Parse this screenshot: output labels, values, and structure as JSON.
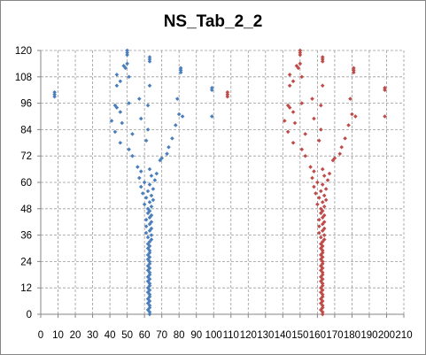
{
  "chart_data": {
    "type": "scatter",
    "title": "NS_Tab_2_2",
    "xlabel": "",
    "ylabel": "",
    "xlim": [
      0,
      210
    ],
    "ylim": [
      0,
      120
    ],
    "x_ticks": [
      "0",
      "10",
      "20",
      "30",
      "40",
      "50",
      "60",
      "70",
      "80",
      "90",
      "100",
      "110",
      "120",
      "130",
      "140",
      "150",
      "160",
      "170",
      "180",
      "190",
      "200",
      "210"
    ],
    "y_ticks": [
      "0",
      "12",
      "24",
      "36",
      "48",
      "60",
      "72",
      "84",
      "96",
      "108",
      "120"
    ],
    "grid": {
      "vertical": "dashed",
      "horizontal": "dashed"
    },
    "legend": "none",
    "series": [
      {
        "color": "#4a7ebb",
        "points": [
          [
            63,
            0
          ],
          [
            63,
            1
          ],
          [
            62,
            2
          ],
          [
            63,
            3
          ],
          [
            63,
            4
          ],
          [
            62,
            5
          ],
          [
            63,
            6
          ],
          [
            62,
            7
          ],
          [
            63,
            8
          ],
          [
            63,
            9
          ],
          [
            62,
            10
          ],
          [
            63,
            11
          ],
          [
            62,
            12
          ],
          [
            63,
            13
          ],
          [
            63,
            14
          ],
          [
            62,
            15
          ],
          [
            63,
            16
          ],
          [
            62,
            17
          ],
          [
            63,
            18
          ],
          [
            63,
            19
          ],
          [
            62,
            20
          ],
          [
            63,
            21
          ],
          [
            62,
            22
          ],
          [
            63,
            23
          ],
          [
            63,
            24
          ],
          [
            62,
            25
          ],
          [
            63,
            26
          ],
          [
            62,
            27
          ],
          [
            63,
            28
          ],
          [
            63,
            29
          ],
          [
            62,
            30
          ],
          [
            63,
            31
          ],
          [
            62,
            32
          ],
          [
            63,
            33
          ],
          [
            64,
            34
          ],
          [
            62,
            35
          ],
          [
            64,
            36
          ],
          [
            61,
            37
          ],
          [
            63,
            38
          ],
          [
            64,
            39
          ],
          [
            61,
            40
          ],
          [
            63,
            41
          ],
          [
            64,
            42
          ],
          [
            61,
            43
          ],
          [
            63,
            44
          ],
          [
            64,
            45
          ],
          [
            62,
            46
          ],
          [
            63,
            47
          ],
          [
            62,
            48
          ],
          [
            64,
            49
          ],
          [
            60,
            50
          ],
          [
            63,
            51
          ],
          [
            65,
            52
          ],
          [
            61,
            53
          ],
          [
            64,
            54
          ],
          [
            59,
            55
          ],
          [
            62,
            56
          ],
          [
            65,
            57
          ],
          [
            58,
            58
          ],
          [
            63,
            59
          ],
          [
            60,
            60
          ],
          [
            66,
            61
          ],
          [
            57,
            62
          ],
          [
            64,
            63
          ],
          [
            67,
            64
          ],
          [
            58,
            65
          ],
          [
            63,
            66
          ],
          [
            56,
            67
          ],
          [
            69,
            70
          ],
          [
            70,
            71
          ],
          [
            53,
            72
          ],
          [
            73,
            73
          ],
          [
            51,
            75
          ],
          [
            74,
            76
          ],
          [
            46,
            78
          ],
          [
            61,
            79
          ],
          [
            76,
            80
          ],
          [
            53,
            82
          ],
          [
            43,
            83
          ],
          [
            62,
            84
          ],
          [
            78,
            86
          ],
          [
            47,
            87
          ],
          [
            41,
            88
          ],
          [
            58,
            89
          ],
          [
            82,
            90
          ],
          [
            99,
            90
          ],
          [
            80,
            91
          ],
          [
            46,
            92
          ],
          [
            62,
            95
          ],
          [
            51,
            96
          ],
          [
            43,
            95
          ],
          [
            44,
            94
          ],
          [
            79,
            98
          ],
          [
            57,
            98
          ],
          [
            63,
            104
          ],
          [
            44,
            104
          ],
          [
            46,
            106
          ],
          [
            81,
            110
          ],
          [
            81,
            111
          ],
          [
            81,
            112
          ],
          [
            51,
            108
          ],
          [
            44,
            109
          ],
          [
            49,
            112
          ],
          [
            48,
            113
          ],
          [
            50,
            114
          ],
          [
            63,
            115
          ],
          [
            63,
            116
          ],
          [
            63,
            117
          ],
          [
            50,
            118
          ],
          [
            50,
            119
          ],
          [
            50,
            120
          ],
          [
            99,
            102
          ],
          [
            99,
            103
          ],
          [
            8,
            99
          ],
          [
            8,
            100
          ],
          [
            8,
            101
          ]
        ]
      },
      {
        "color": "#be4b48",
        "points": [
          [
            163,
            0
          ],
          [
            163,
            1
          ],
          [
            162,
            2
          ],
          [
            163,
            3
          ],
          [
            163,
            4
          ],
          [
            162,
            5
          ],
          [
            163,
            6
          ],
          [
            162,
            7
          ],
          [
            163,
            8
          ],
          [
            163,
            9
          ],
          [
            162,
            10
          ],
          [
            163,
            11
          ],
          [
            162,
            12
          ],
          [
            163,
            13
          ],
          [
            163,
            14
          ],
          [
            162,
            15
          ],
          [
            163,
            16
          ],
          [
            162,
            17
          ],
          [
            163,
            18
          ],
          [
            163,
            19
          ],
          [
            162,
            20
          ],
          [
            163,
            21
          ],
          [
            162,
            22
          ],
          [
            163,
            23
          ],
          [
            163,
            24
          ],
          [
            162,
            25
          ],
          [
            163,
            26
          ],
          [
            162,
            27
          ],
          [
            163,
            28
          ],
          [
            163,
            29
          ],
          [
            162,
            30
          ],
          [
            163,
            31
          ],
          [
            162,
            32
          ],
          [
            163,
            33
          ],
          [
            164,
            34
          ],
          [
            162,
            35
          ],
          [
            164,
            36
          ],
          [
            161,
            37
          ],
          [
            163,
            38
          ],
          [
            164,
            39
          ],
          [
            161,
            40
          ],
          [
            163,
            41
          ],
          [
            164,
            42
          ],
          [
            161,
            43
          ],
          [
            163,
            44
          ],
          [
            164,
            45
          ],
          [
            162,
            46
          ],
          [
            163,
            47
          ],
          [
            162,
            48
          ],
          [
            164,
            49
          ],
          [
            160,
            50
          ],
          [
            163,
            51
          ],
          [
            165,
            52
          ],
          [
            161,
            53
          ],
          [
            164,
            54
          ],
          [
            159,
            55
          ],
          [
            162,
            56
          ],
          [
            165,
            57
          ],
          [
            158,
            58
          ],
          [
            163,
            59
          ],
          [
            160,
            60
          ],
          [
            166,
            61
          ],
          [
            157,
            62
          ],
          [
            164,
            63
          ],
          [
            167,
            64
          ],
          [
            158,
            65
          ],
          [
            163,
            66
          ],
          [
            156,
            67
          ],
          [
            169,
            70
          ],
          [
            170,
            71
          ],
          [
            153,
            72
          ],
          [
            173,
            73
          ],
          [
            151,
            75
          ],
          [
            174,
            76
          ],
          [
            146,
            78
          ],
          [
            161,
            79
          ],
          [
            176,
            80
          ],
          [
            153,
            82
          ],
          [
            143,
            83
          ],
          [
            162,
            84
          ],
          [
            178,
            86
          ],
          [
            147,
            87
          ],
          [
            141,
            88
          ],
          [
            158,
            89
          ],
          [
            182,
            90
          ],
          [
            199,
            90
          ],
          [
            180,
            91
          ],
          [
            146,
            92
          ],
          [
            162,
            95
          ],
          [
            151,
            96
          ],
          [
            143,
            95
          ],
          [
            144,
            94
          ],
          [
            179,
            98
          ],
          [
            157,
            98
          ],
          [
            163,
            104
          ],
          [
            144,
            104
          ],
          [
            146,
            106
          ],
          [
            181,
            110
          ],
          [
            181,
            111
          ],
          [
            181,
            112
          ],
          [
            151,
            108
          ],
          [
            144,
            109
          ],
          [
            149,
            112
          ],
          [
            148,
            113
          ],
          [
            150,
            114
          ],
          [
            163,
            115
          ],
          [
            163,
            116
          ],
          [
            163,
            117
          ],
          [
            150,
            118
          ],
          [
            150,
            119
          ],
          [
            150,
            120
          ],
          [
            199,
            102
          ],
          [
            199,
            103
          ],
          [
            108,
            99
          ],
          [
            108,
            100
          ],
          [
            108,
            101
          ]
        ]
      }
    ]
  }
}
